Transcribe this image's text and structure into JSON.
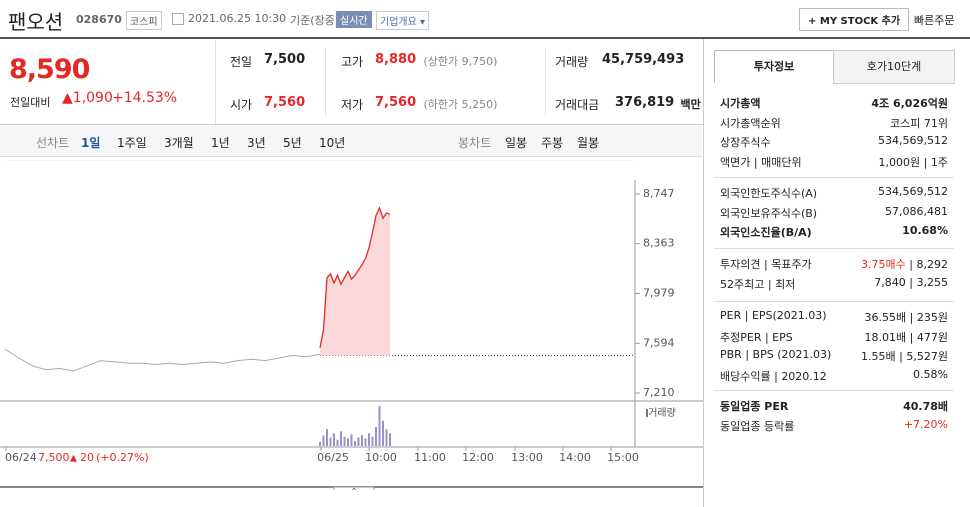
{
  "header": {
    "name": "팬오션",
    "code": "028670",
    "market": "코스피",
    "datetime": "2021.06.25 10:30",
    "basis": "기준(장중)",
    "realtime": "실시간",
    "company_info": "기업개요",
    "my_stock": "MY STOCK 추가",
    "quick_order": "빠른주문"
  },
  "price": {
    "current": "8,590",
    "change_label": "전일대비",
    "change": "1,090",
    "change_rate": "+14.53%"
  },
  "summary": [
    {
      "label": "전일",
      "value": "7,500"
    },
    {
      "label": "고가",
      "value": "8,880",
      "note": "(상한가 9,750)",
      "color": "#e22926"
    },
    {
      "label": "거래량",
      "value": "45,759,493"
    },
    {
      "label": "시가",
      "value": "7,560",
      "color": "#e22926"
    },
    {
      "label": "저가",
      "value": "7,560",
      "note": "(하한가 5,250)",
      "color": "#e22926"
    },
    {
      "label": "거래대금",
      "value": "376,819",
      "unit": "백만"
    }
  ],
  "periods": {
    "line_label": "선차트",
    "line": [
      "1일",
      "1주일",
      "3개월",
      "1년",
      "3년",
      "5년",
      "10년"
    ],
    "candle_label": "봉차트",
    "candle": [
      "일봉",
      "주봉",
      "월봉"
    ]
  },
  "chart": {
    "type": "line",
    "ylim": [
      7210,
      8747
    ],
    "yticks": [
      {
        "value": 8747,
        "label": "8,747"
      },
      {
        "value": 8363,
        "label": "8,363"
      },
      {
        "value": 7979,
        "label": "7,979"
      },
      {
        "value": 7594,
        "label": "7,594"
      },
      {
        "value": 7210,
        "label": "7,210"
      }
    ],
    "xlabels": [
      "06/24",
      "06/25",
      "10:00",
      "11:00",
      "12:00",
      "13:00",
      "14:00",
      "15:00"
    ],
    "previous_close": 7500,
    "series": [
      {
        "name": "06/24",
        "color": "#aaaaaa",
        "values": [
          7550,
          7480,
          7420,
          7390,
          7400,
          7380,
          7420,
          7460,
          7450,
          7440,
          7440,
          7430,
          7440,
          7430,
          7440,
          7450,
          7440,
          7460,
          7470,
          7460,
          7480,
          7500,
          7490,
          7510
        ]
      },
      {
        "name": "06/25",
        "color": "#e22926",
        "values": [
          7560,
          7700,
          8100,
          8130,
          8060,
          8120,
          8050,
          8100,
          8150,
          8090,
          8120,
          8160,
          8200,
          8250,
          8330,
          8450,
          8580,
          8640,
          8560,
          8600,
          8590
        ]
      }
    ],
    "volume_label": "거래량",
    "volumes": [
      10,
      25,
      40,
      20,
      30,
      15,
      35,
      22,
      18,
      28,
      12,
      20,
      26,
      18,
      30,
      22,
      45,
      95,
      60,
      40,
      30
    ],
    "footer": {
      "date": "06/24",
      "close": "7,500",
      "change": "20",
      "rate": "(+0.27%)"
    }
  },
  "investment": {
    "tabs": [
      "투자정보",
      "호가10단계"
    ],
    "sections": [
      [
        {
          "labels": [
            "시가총액"
          ],
          "values": [
            "4조 6,026억원"
          ],
          "bold": true
        },
        {
          "labels": [
            "시가총액순위"
          ],
          "values": [
            "코스피 71위"
          ]
        },
        {
          "labels": [
            "상장주식수"
          ],
          "values": [
            "534,569,512"
          ]
        },
        {
          "labels": [
            "액면가",
            "매매단위"
          ],
          "values": [
            "1,000원",
            "1주"
          ]
        }
      ],
      [
        {
          "labels": [
            "외국인한도주식수(A)"
          ],
          "values": [
            "534,569,512"
          ]
        },
        {
          "labels": [
            "외국인보유주식수(B)"
          ],
          "values": [
            "57,086,481"
          ]
        },
        {
          "labels": [
            "외국인소진율(B/A)"
          ],
          "values": [
            "10.68%"
          ],
          "bold": true
        }
      ],
      [
        {
          "labels": [
            "투자의견",
            "목표주가"
          ],
          "values": [
            "3.75매수",
            "8,292"
          ],
          "color": "#e22926"
        },
        {
          "labels": [
            "52주최고",
            "최저"
          ],
          "values": [
            "7,840",
            "3,255"
          ]
        }
      ],
      [
        {
          "labels": [
            "PER",
            "EPS(2021.03)"
          ],
          "values": [
            "36.55배",
            "235원"
          ]
        },
        {
          "labels": [
            "추정PER",
            "EPS"
          ],
          "values": [
            "18.01배",
            "477원"
          ]
        },
        {
          "labels": [
            "PBR",
            "BPS (2021.03)"
          ],
          "values": [
            "1.55배",
            "5,527원"
          ]
        },
        {
          "labels": [
            "배당수익률",
            "2020.12"
          ],
          "values": [
            "0.58%"
          ]
        }
      ],
      [
        {
          "labels": [
            "동일업종 PER"
          ],
          "values": [
            "40.78배"
          ],
          "bold": true
        },
        {
          "labels": [
            "동일업종 등락률"
          ],
          "values": [
            "+7.20%"
          ],
          "color": "#e22926"
        }
      ]
    ]
  }
}
